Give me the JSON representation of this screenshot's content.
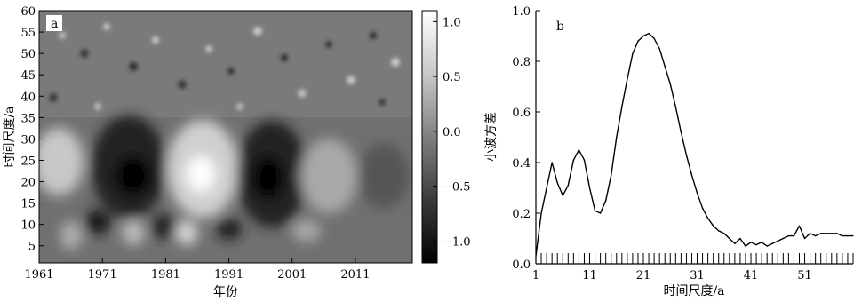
{
  "chart_data": [
    {
      "type": "heatmap",
      "panel_label": "a",
      "xlabel": "年份",
      "ylabel": "时间尺度/a",
      "xlim": [
        1961,
        2020
      ],
      "ylim": [
        1,
        60
      ],
      "x_ticks": [
        "1961",
        "1971",
        "1981",
        "1991",
        "2001",
        "2011"
      ],
      "y_ticks": [
        "5",
        "10",
        "15",
        "20",
        "25",
        "30",
        "35",
        "40",
        "45",
        "50",
        "55",
        "60"
      ],
      "colorbar": {
        "range": [
          -1.2,
          1.1
        ],
        "ticks": [
          "1.0",
          "0.5",
          "0.0",
          "−0.5",
          "−1.0"
        ],
        "colormap": "grayscale"
      },
      "features": [
        {
          "center_year": 1964,
          "center_scale": 24,
          "sign": "positive",
          "value": 0.6
        },
        {
          "center_year": 1975,
          "center_scale": 22,
          "sign": "negative",
          "value": -1.0
        },
        {
          "center_year": 1987,
          "center_scale": 21,
          "sign": "positive",
          "value": 1.0
        },
        {
          "center_year": 1997,
          "center_scale": 20,
          "sign": "negative",
          "value": -1.0
        },
        {
          "center_year": 2007,
          "center_scale": 22,
          "sign": "positive",
          "value": 0.5
        },
        {
          "center_year": 2016,
          "center_scale": 22,
          "sign": "negative",
          "value": -0.5
        }
      ]
    },
    {
      "type": "line",
      "panel_label": "b",
      "xlabel": "时间尺度/a",
      "ylabel": "小波方差",
      "xlim": [
        1,
        60
      ],
      "ylim": [
        0,
        1.0
      ],
      "x_ticks": [
        "1",
        "11",
        "21",
        "31",
        "41",
        "51"
      ],
      "y_ticks": [
        "0.0",
        "0.2",
        "0.4",
        "0.6",
        "0.8",
        "1.0"
      ],
      "x": [
        1,
        2,
        3,
        4,
        5,
        6,
        7,
        8,
        9,
        10,
        11,
        12,
        13,
        14,
        15,
        16,
        17,
        18,
        19,
        20,
        21,
        22,
        23,
        24,
        25,
        26,
        27,
        28,
        29,
        30,
        31,
        32,
        33,
        34,
        35,
        36,
        37,
        38,
        39,
        40,
        41,
        42,
        43,
        44,
        45,
        46,
        47,
        48,
        49,
        50,
        51,
        52,
        53,
        54,
        55,
        56,
        57,
        58,
        59,
        60
      ],
      "series": [
        {
          "values": [
            0.03,
            0.2,
            0.3,
            0.4,
            0.32,
            0.27,
            0.31,
            0.41,
            0.45,
            0.41,
            0.3,
            0.21,
            0.2,
            0.25,
            0.35,
            0.5,
            0.62,
            0.73,
            0.83,
            0.88,
            0.9,
            0.91,
            0.89,
            0.85,
            0.78,
            0.71,
            0.62,
            0.52,
            0.43,
            0.35,
            0.28,
            0.22,
            0.18,
            0.15,
            0.13,
            0.12,
            0.1,
            0.08,
            0.1,
            0.07,
            0.085,
            0.075,
            0.085,
            0.07,
            0.08,
            0.09,
            0.1,
            0.11,
            0.11,
            0.15,
            0.1,
            0.12,
            0.11,
            0.12,
            0.12,
            0.12,
            0.12,
            0.11,
            0.11,
            0.11
          ]
        }
      ]
    }
  ]
}
